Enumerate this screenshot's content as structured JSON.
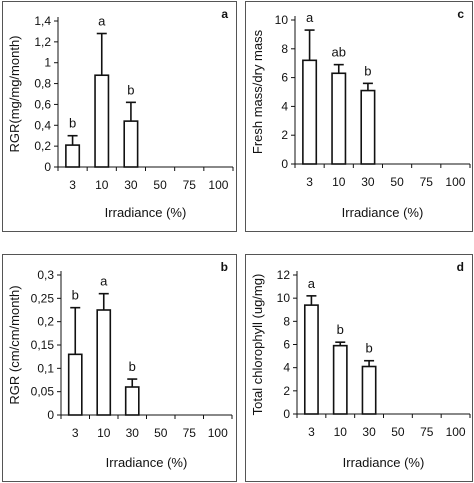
{
  "chart_data": [
    {
      "panel_label": "a",
      "type": "bar",
      "categories": [
        "3",
        "10",
        "30",
        "50",
        "75",
        "100"
      ],
      "values": [
        0.21,
        0.88,
        0.44,
        null,
        null,
        null
      ],
      "errors": [
        0.09,
        0.4,
        0.18,
        null,
        null,
        null
      ],
      "letters": [
        "b",
        "a",
        "b",
        "",
        "",
        ""
      ],
      "ylabel": "RGR(mg/mg/month)",
      "xlabel": "Irradiance (%)",
      "ylim": [
        0,
        1.4
      ],
      "yticks": [
        "0",
        "0,2",
        "0,4",
        "0,6",
        "0,8",
        "1",
        "1,2",
        "1,4"
      ],
      "grid": false
    },
    {
      "panel_label": "c",
      "type": "bar",
      "categories": [
        "3",
        "10",
        "30",
        "50",
        "75",
        "100"
      ],
      "values": [
        7.2,
        6.3,
        5.1,
        null,
        null,
        null
      ],
      "errors": [
        2.1,
        0.6,
        0.5,
        null,
        null,
        null
      ],
      "letters": [
        "a",
        "ab",
        "b",
        "",
        "",
        ""
      ],
      "ylabel": "Fresh mass/dry mass",
      "xlabel": "Irradiance (%)",
      "ylim": [
        0,
        10
      ],
      "yticks": [
        "0",
        "2",
        "4",
        "6",
        "8",
        "10"
      ],
      "grid": false
    },
    {
      "panel_label": "b",
      "type": "bar",
      "categories": [
        "3",
        "10",
        "30",
        "50",
        "75",
        "100"
      ],
      "values": [
        0.13,
        0.225,
        0.06,
        null,
        null,
        null
      ],
      "errors": [
        0.1,
        0.035,
        0.017,
        null,
        null,
        null
      ],
      "letters": [
        "b",
        "a",
        "b",
        "",
        "",
        ""
      ],
      "ylabel": "RGR (cm/cm/month)",
      "xlabel": "Irradiance (%)",
      "ylim": [
        0,
        0.3
      ],
      "yticks": [
        "0",
        "0,05",
        "0,1",
        "0,15",
        "0,2",
        "0,25",
        "0,3"
      ],
      "grid": false
    },
    {
      "panel_label": "d",
      "type": "bar",
      "categories": [
        "3",
        "10",
        "30",
        "50",
        "75",
        "100"
      ],
      "values": [
        9.4,
        5.9,
        4.1,
        null,
        null,
        null
      ],
      "errors": [
        0.8,
        0.3,
        0.5,
        null,
        null,
        null
      ],
      "letters": [
        "a",
        "b",
        "b",
        "",
        "",
        ""
      ],
      "ylabel": "Total chlorophyll (ug/mg)",
      "xlabel": "Irradiance (%)",
      "ylim": [
        0,
        12
      ],
      "yticks": [
        "0",
        "2",
        "4",
        "6",
        "8",
        "10",
        "12"
      ],
      "grid": false
    }
  ]
}
